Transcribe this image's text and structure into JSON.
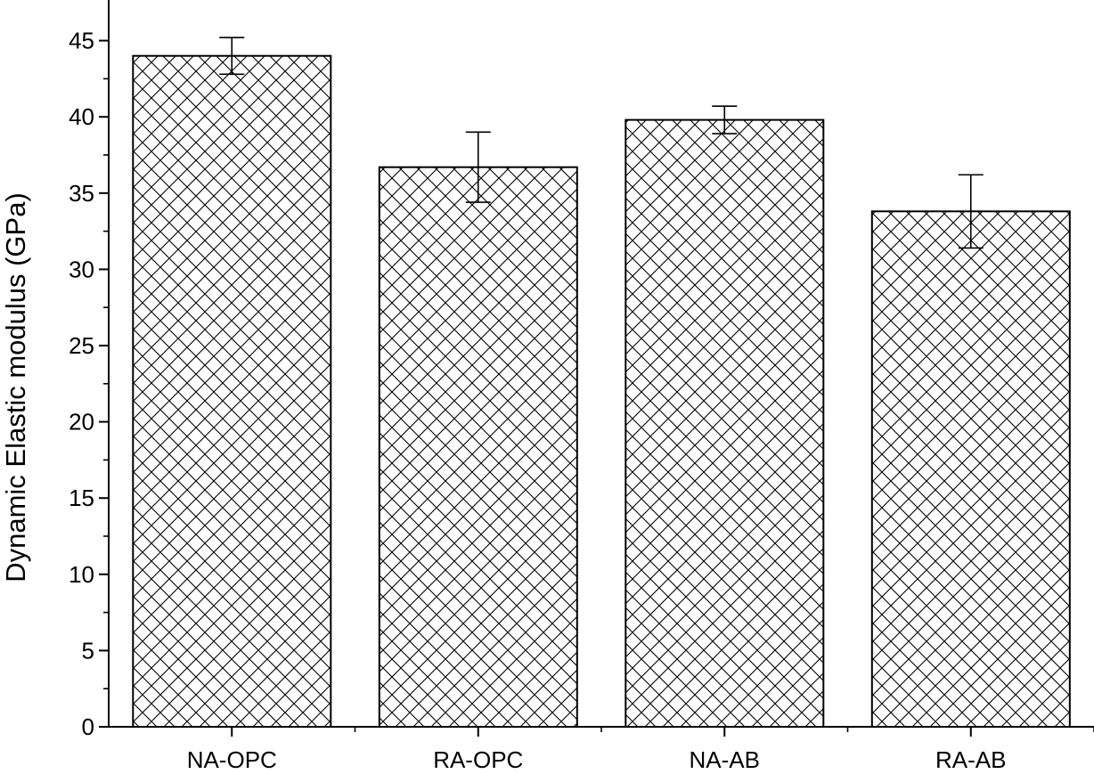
{
  "chart_data": {
    "type": "bar",
    "title": "",
    "xlabel": "",
    "ylabel": "Dynamic Elastic modulus (GPa)",
    "categories": [
      "NA-OPC",
      "RA-OPC",
      "NA-AB",
      "RA-AB"
    ],
    "values": [
      44.0,
      36.7,
      39.8,
      33.8
    ],
    "error_upper": [
      45.2,
      39.0,
      40.7,
      36.2
    ],
    "error_lower": [
      42.8,
      34.4,
      38.9,
      31.4
    ],
    "ylim": [
      0,
      47
    ],
    "yticks": [
      "0",
      "5",
      "10",
      "15",
      "20",
      "25",
      "30",
      "35",
      "40",
      "45"
    ],
    "grid": false,
    "legend": "none",
    "bar_fill": "crosshatch",
    "colors": {
      "bar_stroke": "#000000",
      "hatch": "#000000",
      "background": "#ffffff"
    }
  }
}
